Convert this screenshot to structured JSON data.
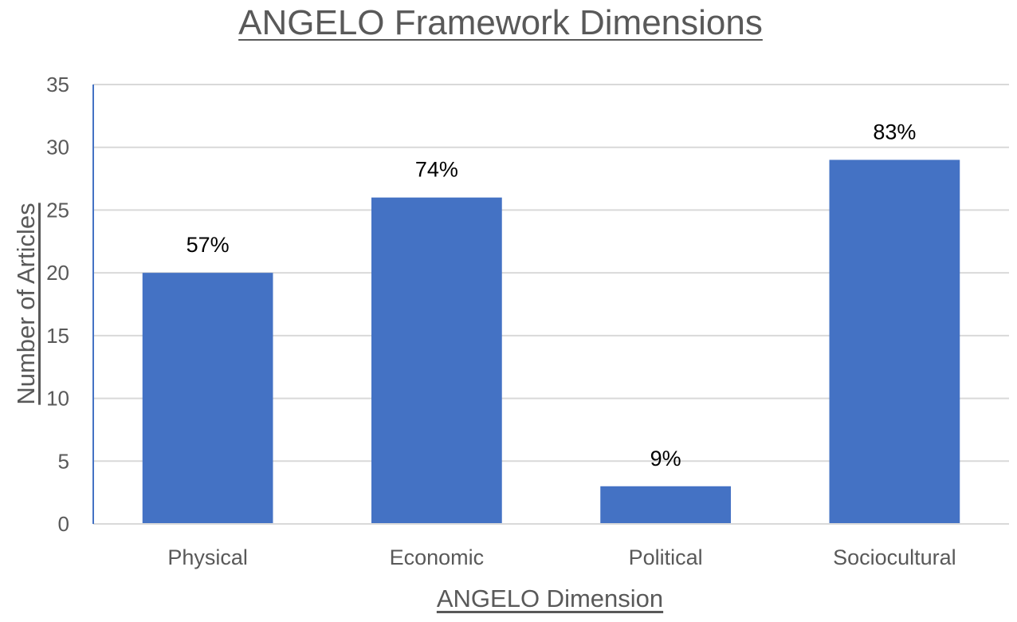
{
  "chart_data": {
    "type": "bar",
    "title": "ANGELO Framework Dimensions",
    "xlabel": "ANGELO Dimension",
    "ylabel": "Number of Articles",
    "categories": [
      "Physical",
      "Economic",
      "Political",
      "Sociocultural"
    ],
    "values": [
      20,
      26,
      3,
      29
    ],
    "data_labels": [
      "57%",
      "74%",
      "9%",
      "83%"
    ],
    "ylim": [
      0,
      35
    ],
    "yticks": [
      "0",
      "5",
      "10",
      "15",
      "20",
      "25",
      "30",
      "35"
    ],
    "grid": true,
    "legend": "none",
    "bar_color": "#4472C4"
  }
}
